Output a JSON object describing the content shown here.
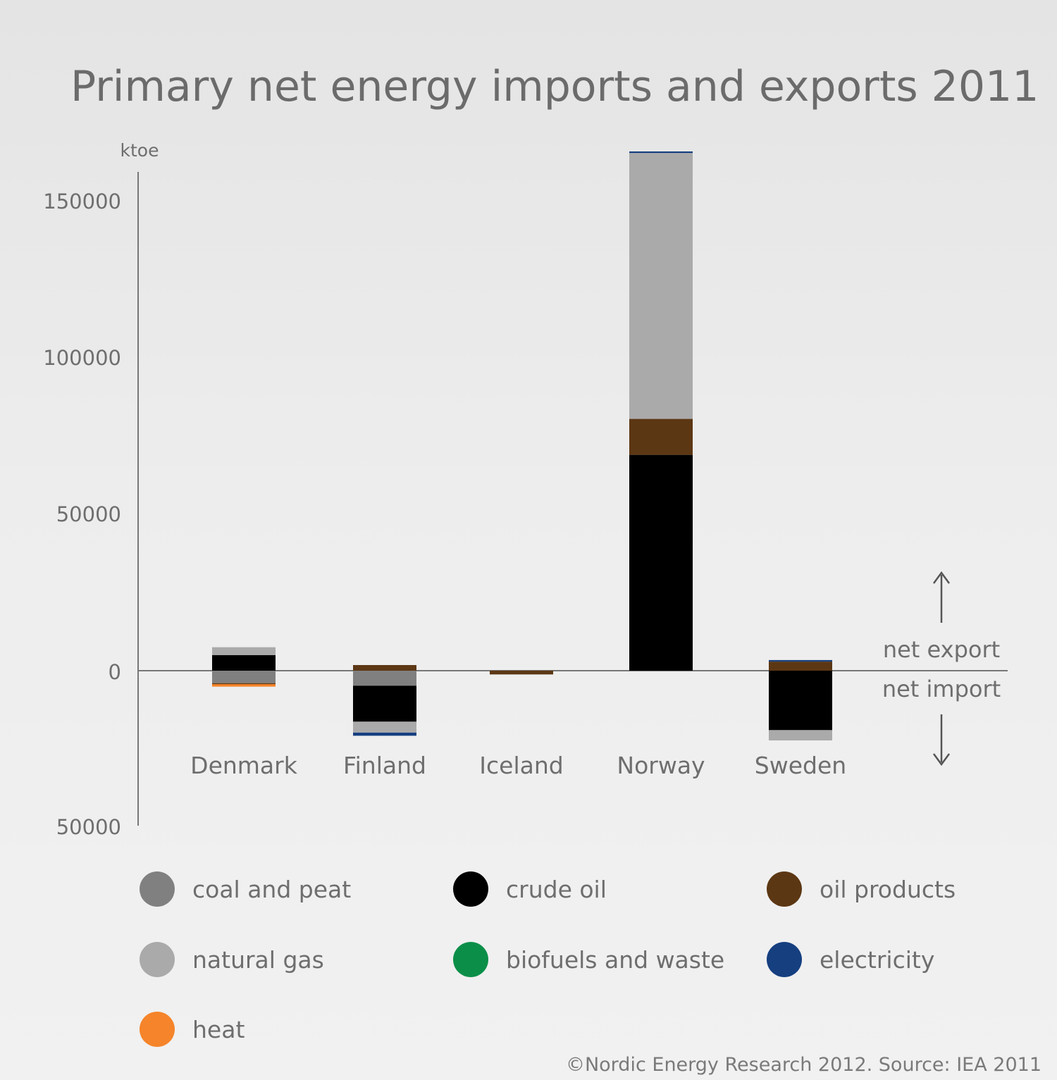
{
  "title": "Primary net energy imports and exports 2011",
  "source": "©Nordic Energy Research 2012. Source: IEA 2011",
  "annotations": {
    "net_export": "net export",
    "net_import": "net import"
  },
  "chart_data": {
    "type": "bar",
    "stacked": true,
    "title": "Primary net energy imports and exports 2011",
    "ylabel": "ktoe",
    "ylim": [
      -50000,
      165000
    ],
    "yticks": [
      150000,
      100000,
      50000,
      0,
      -50000
    ],
    "ytick_labels": [
      "150000",
      "100000",
      "50000",
      "0",
      "50000"
    ],
    "categories": [
      "Denmark",
      "Finland",
      "Iceland",
      "Norway",
      "Sweden"
    ],
    "series": [
      {
        "name": "coal and peat",
        "color": "#808080",
        "values": [
          -4000,
          -4800,
          0,
          0,
          0
        ]
      },
      {
        "name": "crude oil",
        "color": "#000000",
        "values": [
          5000,
          -11500,
          0,
          69000,
          -19000
        ]
      },
      {
        "name": "oil products",
        "color": "#5c3714",
        "values": [
          -300,
          1800,
          -1200,
          11500,
          2900
        ]
      },
      {
        "name": "natural gas",
        "color": "#aaaaaa",
        "values": [
          2500,
          -3500,
          0,
          85000,
          -3300
        ]
      },
      {
        "name": "biofuels and waste",
        "color": "#0b8f48",
        "values": [
          0,
          0,
          0,
          0,
          0
        ]
      },
      {
        "name": "electricity",
        "color": "#163f80",
        "values": [
          0,
          -1000,
          0,
          500,
          500
        ]
      },
      {
        "name": "heat",
        "color": "#f5842a",
        "values": [
          -800,
          0,
          0,
          0,
          0
        ]
      }
    ],
    "legend_position": "bottom",
    "grid": false
  }
}
